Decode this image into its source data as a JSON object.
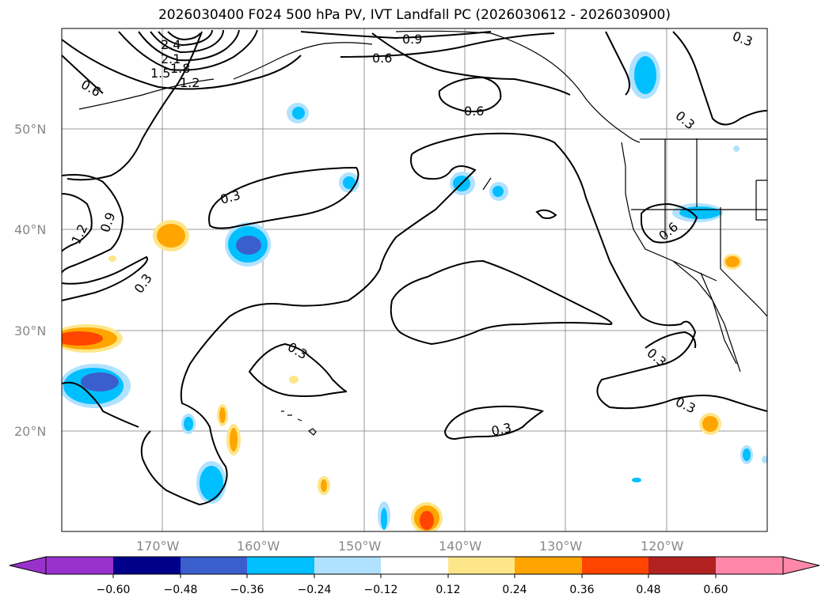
{
  "title": "2026030400 F024 500 hPa PV, IVT Landfall PC (2026030612 - 2026030900)",
  "axes": {
    "lat_labels": [
      "50°N",
      "40°N",
      "30°N",
      "20°N"
    ],
    "lon_labels": [
      "170°W",
      "160°W",
      "150°W",
      "140°W",
      "130°W",
      "120°W"
    ]
  },
  "contour_labels": [
    "2.4",
    "2.1",
    "1.8",
    "1.5",
    "1.2",
    "0.6",
    "0.9",
    "0.6",
    "0.3",
    "0.6",
    "0.3",
    "0.3",
    "0.9",
    "1.2",
    "0.3",
    "0.3",
    "0.3",
    "0.3",
    "0.6",
    "0.3"
  ],
  "colorbar": {
    "ticks": [
      "−0.60",
      "−0.48",
      "−0.36",
      "−0.24",
      "−0.12",
      "0.12",
      "0.24",
      "0.36",
      "0.48",
      "0.60"
    ],
    "colors": [
      "#9932cc",
      "#00008b",
      "#3a5fcd",
      "#00bfff",
      "#b0e2ff",
      "#ffffff",
      "#fde68a",
      "#ffa500",
      "#ff4500",
      "#b22222",
      "#ff88aa"
    ]
  },
  "colors": {
    "blue_light": "#b0e2ff",
    "blue_mid": "#00bfff",
    "blue_dark": "#3a5fcd",
    "orange_light": "#fde68a",
    "orange_mid": "#ffa500",
    "orange_dark": "#ff4500"
  }
}
